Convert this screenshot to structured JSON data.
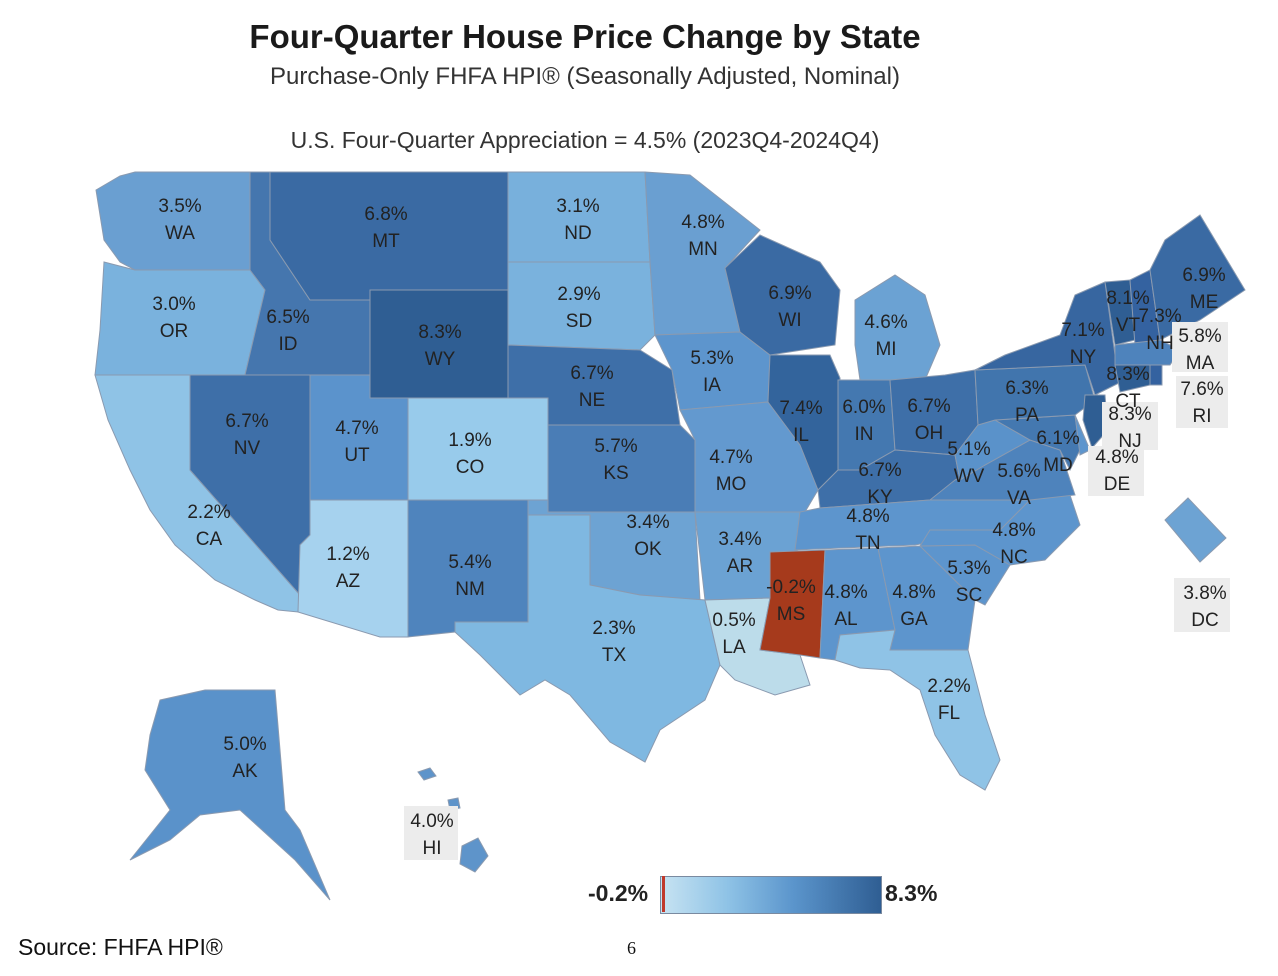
{
  "title": "Four-Quarter House Price Change by State",
  "subtitle": "Purchase-Only FHFA HPI® (Seasonally Adjusted, Nominal)",
  "us_line": "U.S. Four-Quarter Appreciation = 4.5% (2023Q4-2024Q4)",
  "legend": {
    "min": "-0.2%",
    "max": "8.3%"
  },
  "source": "Source:  FHFA HPI®",
  "page_number": "6",
  "colors": {
    "low": "#c7e3f2",
    "high": "#2f5e93",
    "negative": "#a63a1c"
  },
  "states": {
    "WA": {
      "v": "3.5%",
      "n": "WA"
    },
    "OR": {
      "v": "3.0%",
      "n": "OR"
    },
    "CA": {
      "v": "2.2%",
      "n": "CA"
    },
    "NV": {
      "v": "6.7%",
      "n": "NV"
    },
    "ID": {
      "v": "6.5%",
      "n": "ID"
    },
    "MT": {
      "v": "6.8%",
      "n": "MT"
    },
    "WY": {
      "v": "8.3%",
      "n": "WY"
    },
    "UT": {
      "v": "4.7%",
      "n": "UT"
    },
    "AZ": {
      "v": "1.2%",
      "n": "AZ"
    },
    "CO": {
      "v": "1.9%",
      "n": "CO"
    },
    "NM": {
      "v": "5.4%",
      "n": "NM"
    },
    "ND": {
      "v": "3.1%",
      "n": "ND"
    },
    "SD": {
      "v": "2.9%",
      "n": "SD"
    },
    "NE": {
      "v": "6.7%",
      "n": "NE"
    },
    "KS": {
      "v": "5.7%",
      "n": "KS"
    },
    "OK": {
      "v": "3.4%",
      "n": "OK"
    },
    "TX": {
      "v": "2.3%",
      "n": "TX"
    },
    "MN": {
      "v": "4.8%",
      "n": "MN"
    },
    "IA": {
      "v": "5.3%",
      "n": "IA"
    },
    "MO": {
      "v": "4.7%",
      "n": "MO"
    },
    "AR": {
      "v": "3.4%",
      "n": "AR"
    },
    "LA": {
      "v": "0.5%",
      "n": "LA"
    },
    "WI": {
      "v": "6.9%",
      "n": "WI"
    },
    "IL": {
      "v": "7.4%",
      "n": "IL"
    },
    "MI": {
      "v": "4.6%",
      "n": "MI"
    },
    "IN": {
      "v": "6.0%",
      "n": "IN"
    },
    "OH": {
      "v": "6.7%",
      "n": "OH"
    },
    "KY": {
      "v": "6.7%",
      "n": "KY"
    },
    "TN": {
      "v": "4.8%",
      "n": "TN"
    },
    "MS": {
      "v": "-0.2%",
      "n": "MS"
    },
    "AL": {
      "v": "4.8%",
      "n": "AL"
    },
    "GA": {
      "v": "4.8%",
      "n": "GA"
    },
    "FL": {
      "v": "2.2%",
      "n": "FL"
    },
    "SC": {
      "v": "5.3%",
      "n": "SC"
    },
    "NC": {
      "v": "4.8%",
      "n": "NC"
    },
    "VA": {
      "v": "5.6%",
      "n": "VA"
    },
    "WV": {
      "v": "5.1%",
      "n": "WV"
    },
    "MD": {
      "v": "6.1%",
      "n": "MD"
    },
    "DE": {
      "v": "4.8%",
      "n": "DE"
    },
    "PA": {
      "v": "6.3%",
      "n": "PA"
    },
    "NJ": {
      "v": "8.3%",
      "n": "NJ"
    },
    "NY": {
      "v": "7.1%",
      "n": "NY"
    },
    "CT": {
      "v": "8.3%",
      "n": "CT"
    },
    "RI": {
      "v": "7.6%",
      "n": "RI"
    },
    "MA": {
      "v": "5.8%",
      "n": "MA"
    },
    "VT": {
      "v": "8.1%",
      "n": "VT"
    },
    "NH": {
      "v": "7.3%",
      "n": "NH"
    },
    "ME": {
      "v": "6.9%",
      "n": "ME"
    },
    "DC": {
      "v": "3.8%",
      "n": "DC"
    },
    "AK": {
      "v": "5.0%",
      "n": "AK"
    },
    "HI": {
      "v": "4.0%",
      "n": "HI"
    }
  }
}
